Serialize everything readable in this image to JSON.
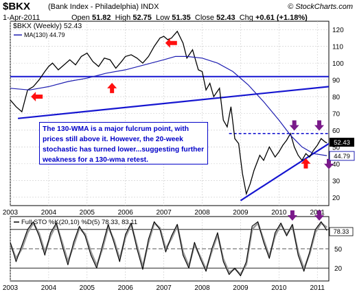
{
  "header": {
    "symbol": "$BKX",
    "name": "(Bank Index - Philadelphia)",
    "exchange": "INDX",
    "site": "© StockCharts.com",
    "date": "1-Apr-2011",
    "open_label": "Open",
    "open": "51.82",
    "high_label": "High",
    "high": "52.75",
    "low_label": "Low",
    "low": "51.35",
    "close_label": "Close",
    "close": "52.43",
    "chg_label": "Chg",
    "chg": "+0.61 (+1.18%)"
  },
  "legend": {
    "price_label": "$BKX (Weekly) 52.43",
    "ma_label": "MA(130) 44.79",
    "sto_label": "Full STO %K(20,10) %D(5) 78.33, 83.11"
  },
  "annotation": {
    "text": "The 130-WMA is a major fulcrum point, with prices still above it. However, the 20-week stochastic has turned lower...suggesting further weakness for a 130-wma retest."
  },
  "colors": {
    "price": "#000000",
    "ma": "#1c1cb0",
    "trendline": "#1515d0",
    "annotation_border": "#0000c8",
    "up_arrow": "#ff1010",
    "down_arrow": "#7a1a8a",
    "sto_k": "#000000",
    "sto_d": "#9a9a9a",
    "price_tag_bg": "#000000",
    "ma_tag_bg": "#ffffff"
  },
  "chart_data": [
    {
      "type": "line",
      "title": "$BKX (Weekly)",
      "x_tick_labels": [
        "2003",
        "2004",
        "2005",
        "2006",
        "2007",
        "2008",
        "2009",
        "2010",
        "2011"
      ],
      "y_tick_labels": [
        "20",
        "30",
        "40",
        "50",
        "60",
        "70",
        "80",
        "90",
        "100",
        "110",
        "120"
      ],
      "ylim": [
        15,
        125
      ],
      "xlim": [
        2003.0,
        2011.3
      ],
      "grid": true,
      "last_price_tag": "52.43",
      "last_ma_tag": "44.79",
      "series": [
        {
          "name": "$BKX (Weekly)",
          "x": [
            2003.0,
            2003.15,
            2003.3,
            2003.45,
            2003.6,
            2003.75,
            2003.9,
            2004.0,
            2004.1,
            2004.25,
            2004.4,
            2004.55,
            2004.7,
            2004.85,
            2005.0,
            2005.15,
            2005.3,
            2005.45,
            2005.6,
            2005.75,
            2005.9,
            2006.0,
            2006.15,
            2006.3,
            2006.45,
            2006.6,
            2006.75,
            2006.9,
            2007.0,
            2007.1,
            2007.2,
            2007.35,
            2007.5,
            2007.6,
            2007.75,
            2007.9,
            2008.0,
            2008.1,
            2008.2,
            2008.3,
            2008.45,
            2008.55,
            2008.65,
            2008.75,
            2008.85,
            2008.95,
            2009.05,
            2009.15,
            2009.25,
            2009.35,
            2009.5,
            2009.6,
            2009.75,
            2009.9,
            2010.0,
            2010.1,
            2010.2,
            2010.3,
            2010.4,
            2010.5,
            2010.6,
            2010.7,
            2010.8,
            2010.9,
            2011.0,
            2011.1,
            2011.2,
            2011.25
          ],
          "values": [
            78,
            74,
            71,
            84,
            86,
            90,
            95,
            98,
            100,
            96,
            99,
            102,
            99,
            104,
            106,
            101,
            98,
            103,
            102,
            97,
            101,
            104,
            105,
            103,
            100,
            104,
            110,
            115,
            116,
            114,
            115,
            119,
            112,
            103,
            108,
            96,
            95,
            84,
            88,
            80,
            85,
            66,
            62,
            74,
            55,
            52,
            34,
            22,
            28,
            36,
            45,
            42,
            50,
            44,
            47,
            51,
            54,
            58,
            50,
            45,
            42,
            46,
            44,
            48,
            51,
            55,
            53,
            52.43
          ]
        },
        {
          "name": "MA(130)",
          "x": [
            2003.0,
            2003.5,
            2004.0,
            2004.5,
            2005.0,
            2005.5,
            2006.0,
            2006.5,
            2007.0,
            2007.3,
            2007.6,
            2008.0,
            2008.4,
            2008.8,
            2009.2,
            2009.6,
            2010.0,
            2010.3,
            2010.6,
            2010.9,
            2011.25
          ],
          "values": [
            85,
            84,
            86,
            89,
            91,
            94,
            96,
            99,
            102,
            104,
            104,
            103,
            100,
            95,
            87,
            77,
            66,
            57,
            50,
            46,
            44.79
          ]
        }
      ],
      "horizontal_lines": [
        92,
        58
      ],
      "trendlines": [
        {
          "x": [
            2003.2,
            2011.3
          ],
          "values": [
            67,
            86
          ]
        },
        {
          "x": [
            2009.0,
            2011.3
          ],
          "values": [
            18,
            52
          ]
        }
      ],
      "up_arrows": [
        {
          "x": 2005.65,
          "y": 85
        },
        {
          "x": 2010.7,
          "y": 40
        }
      ],
      "left_arrows": [
        {
          "x": 2003.7,
          "y": 80
        },
        {
          "x": 2007.2,
          "y": 112
        }
      ],
      "down_arrows": [
        {
          "x": 2010.4,
          "y": 63
        },
        {
          "x": 2011.05,
          "y": 63
        },
        {
          "x": 2011.3,
          "y": 40
        }
      ]
    },
    {
      "type": "line",
      "title": "Full STO %K(20,10) %D(5)",
      "x_tick_labels": [
        "2003",
        "2004",
        "2005",
        "2006",
        "2007",
        "2008",
        "2009",
        "2010",
        "2011"
      ],
      "y_tick_labels": [
        "20",
        "50",
        "80"
      ],
      "ylim": [
        0,
        100
      ],
      "xlim": [
        2003.0,
        2011.3
      ],
      "grid": true,
      "last_k_tag": "78.33",
      "series": [
        {
          "name": "%K",
          "x": [
            2003.0,
            2003.15,
            2003.3,
            2003.45,
            2003.6,
            2003.75,
            2003.9,
            2004.05,
            2004.2,
            2004.35,
            2004.5,
            2004.65,
            2004.8,
            2004.95,
            2005.1,
            2005.25,
            2005.4,
            2005.55,
            2005.7,
            2005.85,
            2006.0,
            2006.15,
            2006.3,
            2006.45,
            2006.6,
            2006.75,
            2006.9,
            2007.05,
            2007.2,
            2007.35,
            2007.5,
            2007.65,
            2007.8,
            2007.95,
            2008.1,
            2008.25,
            2008.4,
            2008.55,
            2008.7,
            2008.85,
            2009.0,
            2009.15,
            2009.3,
            2009.45,
            2009.6,
            2009.75,
            2009.9,
            2010.05,
            2010.2,
            2010.35,
            2010.5,
            2010.65,
            2010.8,
            2010.95,
            2011.1,
            2011.25
          ],
          "values": [
            60,
            30,
            55,
            80,
            92,
            70,
            40,
            75,
            90,
            55,
            25,
            60,
            85,
            70,
            40,
            20,
            55,
            88,
            60,
            30,
            72,
            90,
            50,
            18,
            65,
            92,
            80,
            45,
            70,
            88,
            40,
            20,
            60,
            35,
            15,
            50,
            75,
            30,
            10,
            20,
            8,
            30,
            85,
            92,
            60,
            35,
            75,
            90,
            70,
            88,
            40,
            15,
            45,
            80,
            92,
            78.33
          ]
        },
        {
          "name": "%D",
          "x": [
            2003.0,
            2003.15,
            2003.3,
            2003.45,
            2003.6,
            2003.75,
            2003.9,
            2004.05,
            2004.2,
            2004.35,
            2004.5,
            2004.65,
            2004.8,
            2004.95,
            2005.1,
            2005.25,
            2005.4,
            2005.55,
            2005.7,
            2005.85,
            2006.0,
            2006.15,
            2006.3,
            2006.45,
            2006.6,
            2006.75,
            2006.9,
            2007.05,
            2007.2,
            2007.35,
            2007.5,
            2007.65,
            2007.8,
            2007.95,
            2008.1,
            2008.25,
            2008.4,
            2008.55,
            2008.7,
            2008.85,
            2009.0,
            2009.15,
            2009.3,
            2009.45,
            2009.6,
            2009.75,
            2009.9,
            2010.05,
            2010.2,
            2010.35,
            2010.5,
            2010.65,
            2010.8,
            2010.95,
            2011.1,
            2011.25
          ],
          "values": [
            58,
            35,
            50,
            75,
            90,
            74,
            45,
            70,
            88,
            60,
            30,
            55,
            82,
            73,
            45,
            24,
            50,
            84,
            64,
            34,
            68,
            88,
            55,
            22,
            60,
            90,
            82,
            50,
            66,
            86,
            45,
            23,
            56,
            38,
            18,
            46,
            72,
            34,
            13,
            19,
            10,
            26,
            80,
            90,
            64,
            38,
            70,
            88,
            72,
            86,
            45,
            19,
            42,
            76,
            90,
            83.11
          ]
        }
      ],
      "down_arrows": [
        {
          "x": 2010.35,
          "y": 100
        },
        {
          "x": 2011.05,
          "y": 100
        }
      ]
    }
  ]
}
